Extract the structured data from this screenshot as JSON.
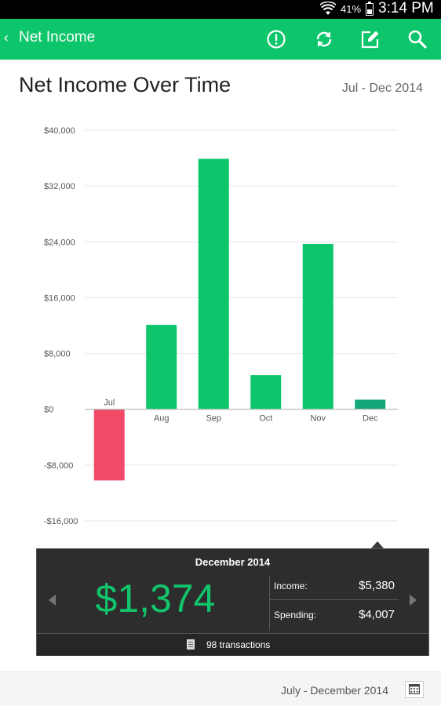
{
  "status_bar": {
    "battery": "41%",
    "battery_level": 0.41,
    "time": "3:14 PM"
  },
  "app_bar": {
    "back_icon": "chevron-left-icon",
    "title": "Net Income",
    "actions": [
      "alert-icon",
      "sync-icon",
      "edit-icon",
      "search-icon"
    ]
  },
  "heading": {
    "title": "Net Income Over Time",
    "period": "Jul - Dec 2014"
  },
  "chart_data": {
    "type": "bar",
    "categories": [
      "Jul",
      "Aug",
      "Sep",
      "Oct",
      "Nov",
      "Dec"
    ],
    "values": [
      -10200,
      12100,
      35900,
      4900,
      23700,
      1374
    ],
    "ylim": [
      -16000,
      40000
    ],
    "yticks": [
      40000,
      32000,
      24000,
      16000,
      8000,
      0,
      -8000,
      -16000
    ],
    "ytick_labels": [
      "$40,000",
      "$32,000",
      "$24,000",
      "$16,000",
      "$8,000",
      "$0",
      "-$8,000",
      "-$16,000"
    ],
    "grid": true,
    "selected_index": 5,
    "colors": {
      "positive": "#0dc56a",
      "negative": "#f24b6a",
      "selected": "#14a77a",
      "grid": "#e6e6e6",
      "axis": "#bbbbbb",
      "label": "#555555"
    }
  },
  "detail": {
    "title": "December 2014",
    "net": "$1,374",
    "income_label": "Income:",
    "income_value": "$5,380",
    "spending_label": "Spending:",
    "spending_value": "$4,007",
    "transactions": "98 transactions"
  },
  "footer": {
    "range": "July - December 2014",
    "calendar_icon": "calendar-icon"
  }
}
